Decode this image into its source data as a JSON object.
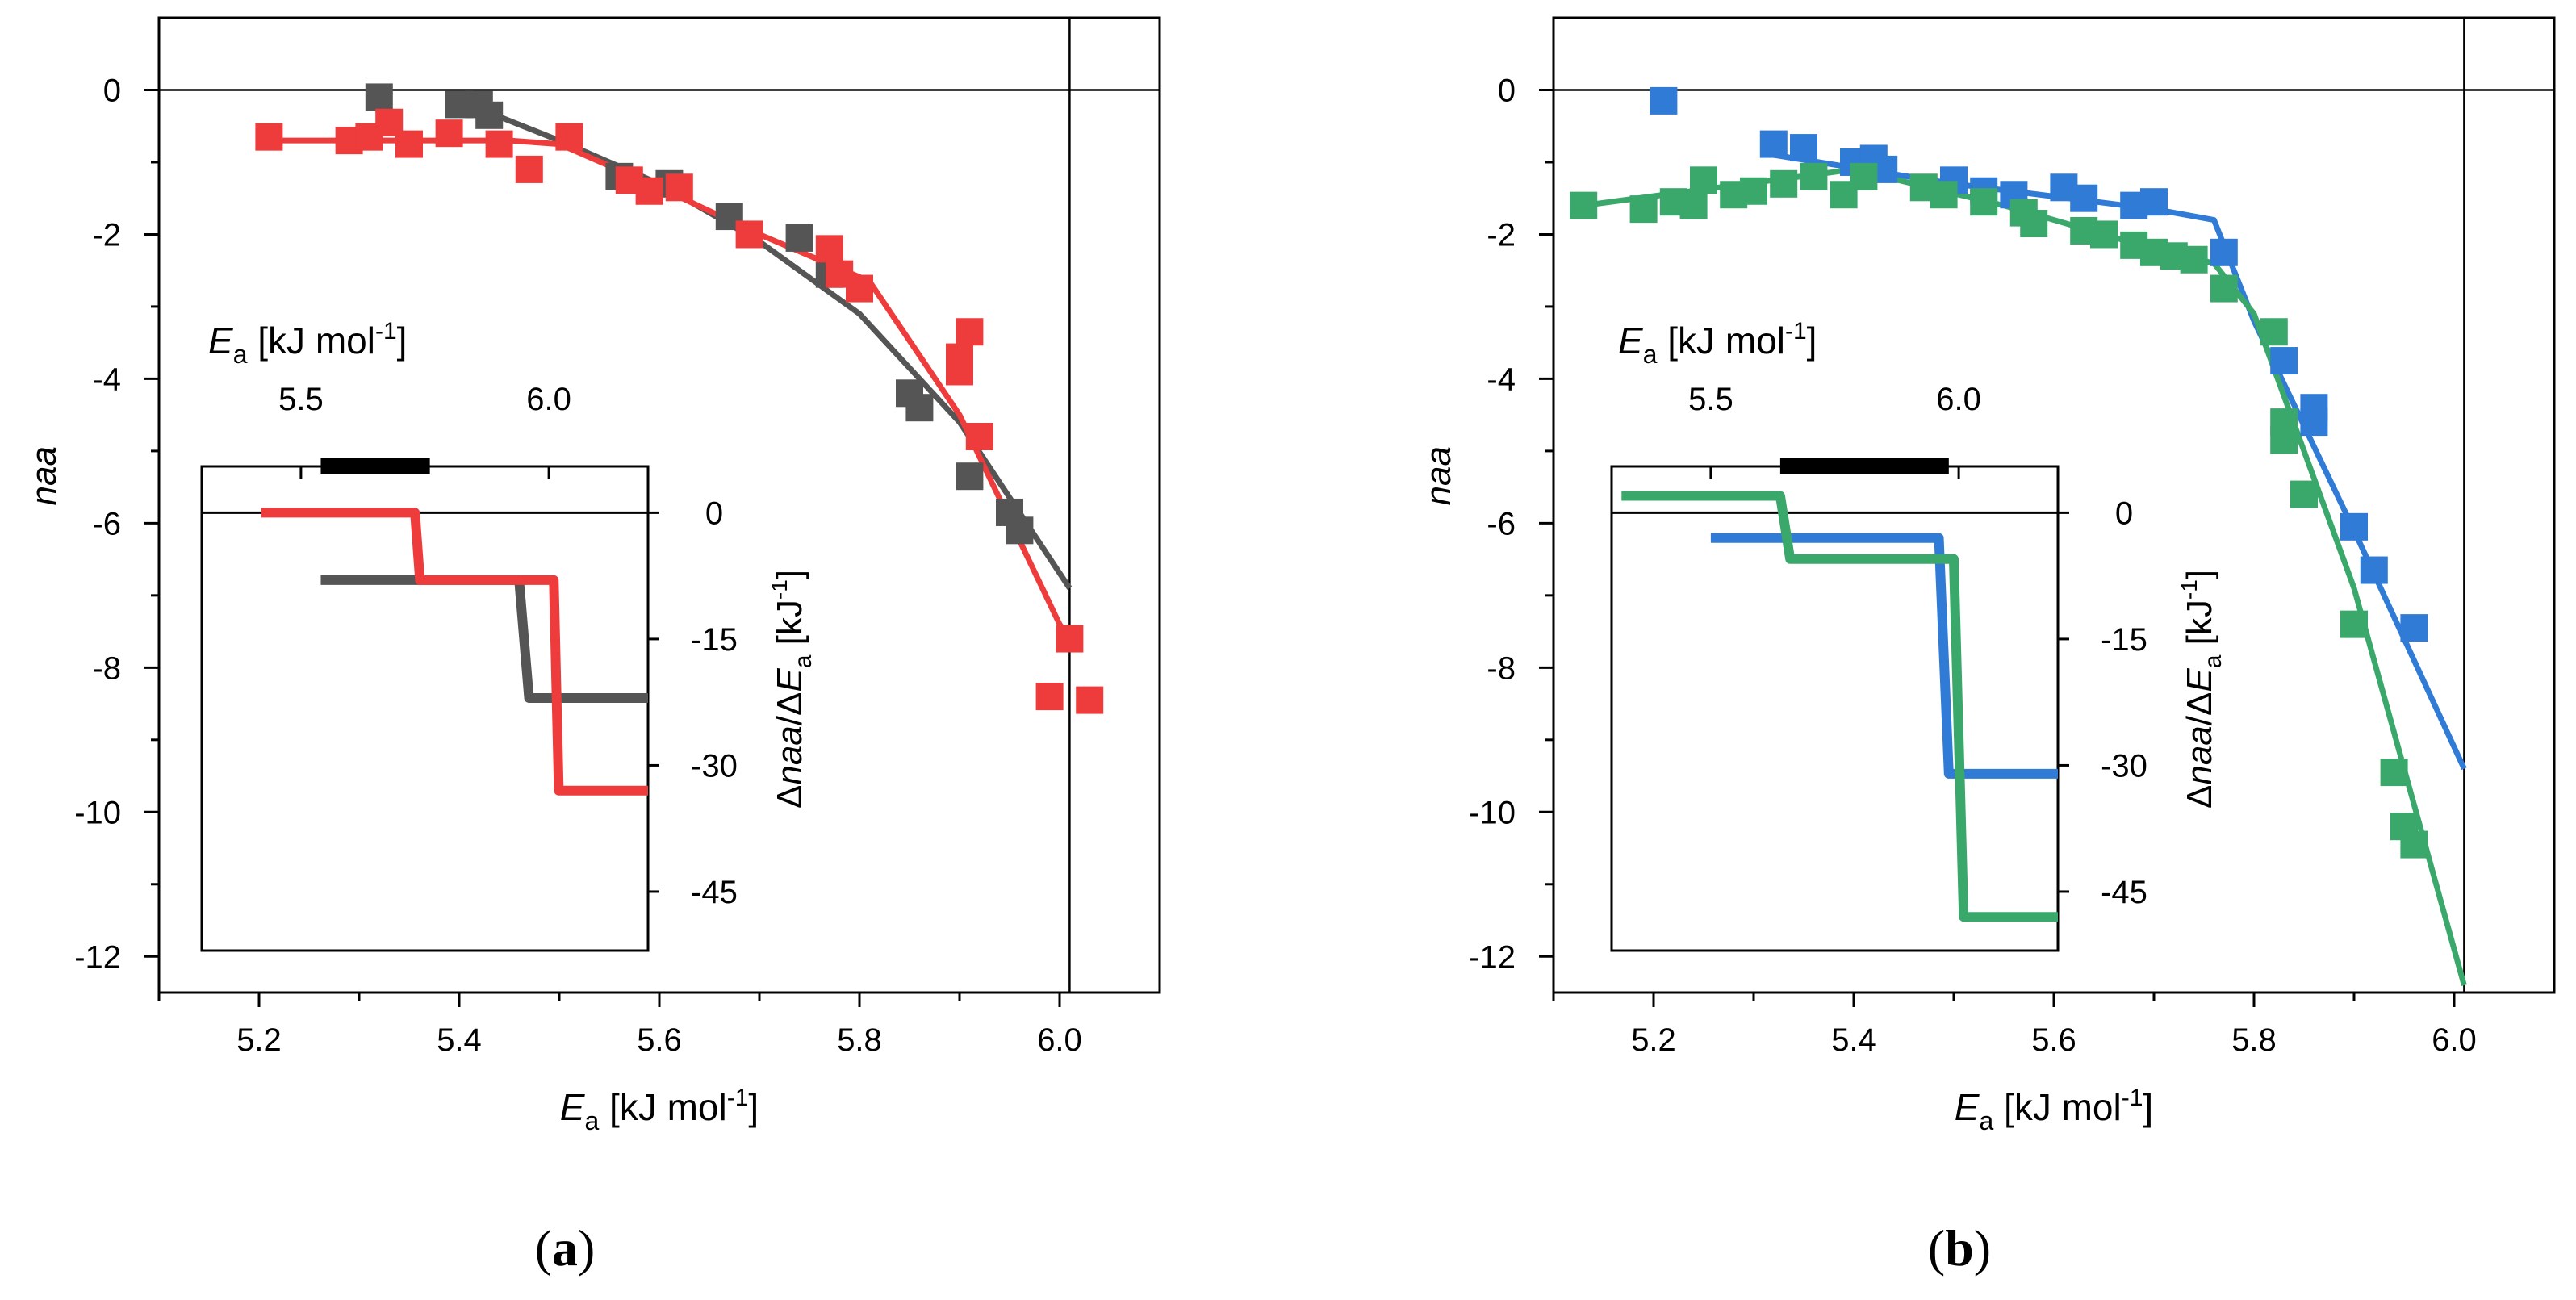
{
  "chart_data": [
    {
      "type": "scatter",
      "panel_label": "(a)",
      "panel_letter": "a",
      "xlabel": {
        "main": "E",
        "sub": "a",
        "rest": " [kJ mol",
        "sup": "-1",
        "end": "]"
      },
      "ylabel": "naa",
      "xlim": [
        5.1,
        6.1
      ],
      "ylim": [
        -12.5,
        1.0
      ],
      "xticks": [
        5.2,
        5.4,
        5.6,
        5.8,
        6.0
      ],
      "xtick_labels": [
        "5.2",
        "5.4",
        "5.6",
        "5.8",
        "6.0"
      ],
      "yticks": [
        0,
        -2,
        -4,
        -6,
        -8,
        -10,
        -12
      ],
      "ytick_labels": [
        "0",
        "-2",
        "-4",
        "-6",
        "-8",
        "-10",
        "-12"
      ],
      "reference_lines": {
        "y": 0,
        "x": 6.01
      },
      "series": [
        {
          "name": "gray",
          "color": "#555555",
          "points": [
            [
              5.32,
              -0.1
            ],
            [
              5.4,
              -0.2
            ],
            [
              5.42,
              -0.2
            ],
            [
              5.43,
              -0.35
            ],
            [
              5.56,
              -1.2
            ],
            [
              5.61,
              -1.3
            ],
            [
              5.67,
              -1.75
            ],
            [
              5.74,
              -2.05
            ],
            [
              5.77,
              -2.55
            ],
            [
              5.85,
              -4.2
            ],
            [
              5.86,
              -4.4
            ],
            [
              5.91,
              -5.35
            ],
            [
              5.95,
              -5.85
            ],
            [
              5.96,
              -6.1
            ]
          ],
          "fit": [
            [
              5.4,
              -0.15
            ],
            [
              5.5,
              -0.7
            ],
            [
              5.6,
              -1.3
            ],
            [
              5.7,
              -2.1
            ],
            [
              5.8,
              -3.1
            ],
            [
              5.9,
              -4.6
            ],
            [
              6.01,
              -6.9
            ]
          ]
        },
        {
          "name": "red",
          "color": "#ee3b3b",
          "points": [
            [
              5.21,
              -0.65
            ],
            [
              5.29,
              -0.7
            ],
            [
              5.31,
              -0.65
            ],
            [
              5.33,
              -0.45
            ],
            [
              5.35,
              -0.75
            ],
            [
              5.39,
              -0.6
            ],
            [
              5.44,
              -0.75
            ],
            [
              5.47,
              -1.1
            ],
            [
              5.51,
              -0.65
            ],
            [
              5.57,
              -1.25
            ],
            [
              5.59,
              -1.4
            ],
            [
              5.62,
              -1.35
            ],
            [
              5.69,
              -2.0
            ],
            [
              5.77,
              -2.2
            ],
            [
              5.78,
              -2.55
            ],
            [
              5.8,
              -2.75
            ],
            [
              5.9,
              -3.9
            ],
            [
              5.9,
              -3.7
            ],
            [
              5.91,
              -3.35
            ],
            [
              5.92,
              -4.8
            ],
            [
              5.99,
              -8.4
            ],
            [
              6.01,
              -7.6
            ],
            [
              6.03,
              -8.45
            ]
          ],
          "fit": [
            [
              5.21,
              -0.7
            ],
            [
              5.45,
              -0.7
            ],
            [
              5.5,
              -0.75
            ],
            [
              5.6,
              -1.35
            ],
            [
              5.7,
              -2.0
            ],
            [
              5.81,
              -2.65
            ],
            [
              5.9,
              -4.5
            ],
            [
              6.0,
              -7.4
            ],
            [
              6.01,
              -7.6
            ]
          ]
        }
      ],
      "inset": {
        "type": "line",
        "xlabel": {
          "main": "E",
          "sub": "a",
          "rest": " [kJ mol",
          "sup": "-1",
          "end": "]"
        },
        "ylabel": {
          "pre": "Δ",
          "n1": "naa",
          "mid": "/Δ",
          "n2": "E",
          "sub": "a",
          "rest": " [kJ",
          "sup": "-1",
          "end": "]"
        },
        "xlim": [
          5.3,
          6.2
        ],
        "ylim": [
          -52,
          5.5
        ],
        "xtick_labels": [
          "5.5",
          "6.0"
        ],
        "xticks": [
          5.5,
          6.0
        ],
        "ytick_labels": [
          "0",
          "-15",
          "-30",
          "-45"
        ],
        "yticks": [
          0,
          -15,
          -30,
          -45
        ],
        "bar_range": [
          5.54,
          5.76
        ],
        "series": [
          {
            "name": "gray",
            "color": "#555555",
            "steps": [
              [
                5.54,
                -8
              ],
              [
                5.94,
                -8
              ],
              [
                5.96,
                -22
              ],
              [
                6.2,
                -22
              ]
            ]
          },
          {
            "name": "red",
            "color": "#ee3b3b",
            "steps": [
              [
                5.42,
                0
              ],
              [
                5.73,
                0
              ],
              [
                5.74,
                -8
              ],
              [
                6.01,
                -8
              ],
              [
                6.02,
                -33
              ],
              [
                6.2,
                -33
              ]
            ]
          }
        ]
      }
    },
    {
      "type": "scatter",
      "panel_label": "(b)",
      "panel_letter": "b",
      "xlabel": {
        "main": "E",
        "sub": "a",
        "rest": " [kJ mol",
        "sup": "-1",
        "end": "]"
      },
      "ylabel": "naa",
      "xlim": [
        5.1,
        6.1
      ],
      "ylim": [
        -12.5,
        1.0
      ],
      "xticks": [
        5.2,
        5.4,
        5.6,
        5.8,
        6.0
      ],
      "xtick_labels": [
        "5.2",
        "5.4",
        "5.6",
        "5.8",
        "6.0"
      ],
      "yticks": [
        0,
        -2,
        -4,
        -6,
        -8,
        -10,
        -12
      ],
      "ytick_labels": [
        "0",
        "-2",
        "-4",
        "-6",
        "-8",
        "-10",
        "-12"
      ],
      "reference_lines": {
        "y": 0,
        "x": 6.01
      },
      "series": [
        {
          "name": "blue",
          "color": "#2f7bd6",
          "points": [
            [
              5.21,
              -0.15
            ],
            [
              5.32,
              -0.75
            ],
            [
              5.35,
              -0.8
            ],
            [
              5.4,
              -1.0
            ],
            [
              5.42,
              -0.95
            ],
            [
              5.43,
              -1.1
            ],
            [
              5.5,
              -1.25
            ],
            [
              5.53,
              -1.4
            ],
            [
              5.56,
              -1.45
            ],
            [
              5.61,
              -1.35
            ],
            [
              5.63,
              -1.5
            ],
            [
              5.68,
              -1.6
            ],
            [
              5.7,
              -1.55
            ],
            [
              5.77,
              -2.25
            ],
            [
              5.83,
              -3.75
            ],
            [
              5.86,
              -4.4
            ],
            [
              5.86,
              -4.6
            ],
            [
              5.9,
              -6.05
            ],
            [
              5.92,
              -6.65
            ],
            [
              5.96,
              -7.45
            ]
          ],
          "fit": [
            [
              5.32,
              -0.9
            ],
            [
              5.5,
              -1.3
            ],
            [
              5.7,
              -1.65
            ],
            [
              5.76,
              -1.8
            ],
            [
              5.8,
              -3.2
            ],
            [
              5.9,
              -6.1
            ],
            [
              6.01,
              -9.4
            ]
          ]
        },
        {
          "name": "green",
          "color": "#3aa86b",
          "points": [
            [
              5.13,
              -1.6
            ],
            [
              5.19,
              -1.65
            ],
            [
              5.22,
              -1.55
            ],
            [
              5.24,
              -1.6
            ],
            [
              5.25,
              -1.25
            ],
            [
              5.28,
              -1.45
            ],
            [
              5.3,
              -1.4
            ],
            [
              5.33,
              -1.3
            ],
            [
              5.36,
              -1.2
            ],
            [
              5.39,
              -1.45
            ],
            [
              5.41,
              -1.2
            ],
            [
              5.47,
              -1.35
            ],
            [
              5.49,
              -1.45
            ],
            [
              5.53,
              -1.55
            ],
            [
              5.57,
              -1.7
            ],
            [
              5.58,
              -1.85
            ],
            [
              5.63,
              -1.95
            ],
            [
              5.65,
              -2.0
            ],
            [
              5.68,
              -2.15
            ],
            [
              5.7,
              -2.25
            ],
            [
              5.72,
              -2.3
            ],
            [
              5.74,
              -2.35
            ],
            [
              5.77,
              -2.75
            ],
            [
              5.82,
              -3.35
            ],
            [
              5.83,
              -4.6
            ],
            [
              5.83,
              -4.85
            ],
            [
              5.85,
              -5.6
            ],
            [
              5.9,
              -7.4
            ],
            [
              5.94,
              -9.45
            ],
            [
              5.95,
              -10.2
            ],
            [
              5.96,
              -10.45
            ]
          ],
          "fit": [
            [
              5.13,
              -1.6
            ],
            [
              5.4,
              -1.1
            ],
            [
              5.55,
              -1.6
            ],
            [
              5.7,
              -2.2
            ],
            [
              5.76,
              -2.4
            ],
            [
              5.8,
              -3.1
            ],
            [
              5.9,
              -6.9
            ],
            [
              6.01,
              -12.4
            ]
          ]
        }
      ],
      "inset": {
        "type": "line",
        "xlabel": {
          "main": "E",
          "sub": "a",
          "rest": " [kJ mol",
          "sup": "-1",
          "end": "]"
        },
        "ylabel": {
          "pre": "Δ",
          "n1": "naa",
          "mid": "/Δ",
          "n2": "E",
          "sub": "a",
          "rest": " [kJ",
          "sup": "-1",
          "end": "]"
        },
        "xlim": [
          5.3,
          6.2
        ],
        "ylim": [
          -52,
          5.5
        ],
        "xtick_labels": [
          "5.5",
          "6.0"
        ],
        "xticks": [
          5.5,
          6.0
        ],
        "ytick_labels": [
          "0",
          "-15",
          "-30",
          "-45"
        ],
        "yticks": [
          0,
          -15,
          -30,
          -45
        ],
        "bar_range": [
          5.64,
          5.98
        ],
        "series": [
          {
            "name": "blue",
            "color": "#2f7bd6",
            "steps": [
              [
                5.5,
                -3
              ],
              [
                5.96,
                -3
              ],
              [
                5.98,
                -31
              ],
              [
                6.2,
                -31
              ]
            ]
          },
          {
            "name": "green",
            "color": "#3aa86b",
            "steps": [
              [
                5.32,
                2
              ],
              [
                5.64,
                2
              ],
              [
                5.66,
                -5.5
              ],
              [
                5.99,
                -5.5
              ],
              [
                6.01,
                -48
              ],
              [
                6.2,
                -48
              ]
            ]
          }
        ]
      }
    }
  ]
}
